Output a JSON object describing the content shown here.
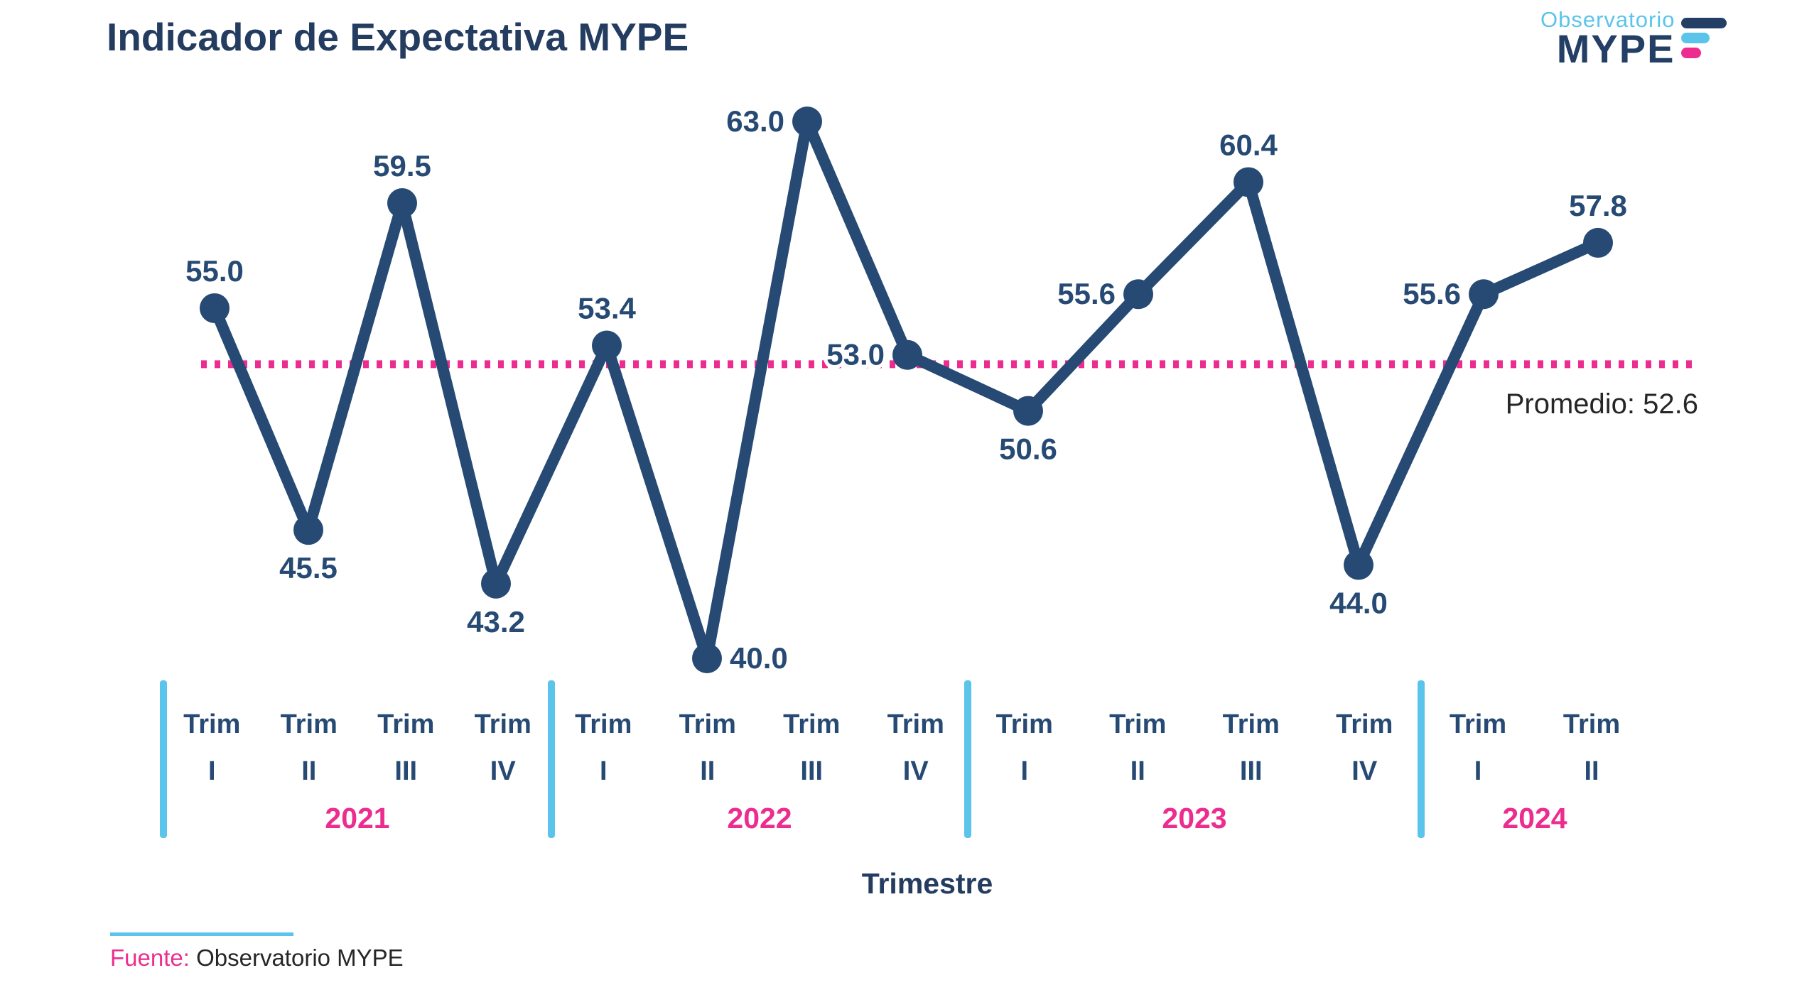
{
  "header": {
    "title": "Indicador de Expectativa MYPE"
  },
  "logo": {
    "brand_top": "Observatorio",
    "brand_name": "MYPE"
  },
  "chart_data": {
    "type": "line",
    "title": "Indicador de Expectativa MYPE",
    "xlabel": "Trimestre",
    "ylabel": "",
    "ylim": [
      40,
      63
    ],
    "grid": false,
    "legend": false,
    "quarter_word": "Trim",
    "categories": [
      "Trim I 2021",
      "Trim II 2021",
      "Trim III 2021",
      "Trim IV 2021",
      "Trim I 2022",
      "Trim II 2022",
      "Trim III 2022",
      "Trim IV 2022",
      "Trim I 2023",
      "Trim II 2023",
      "Trim III 2023",
      "Trim IV 2023",
      "Trim I 2024",
      "Trim II 2024"
    ],
    "years": [
      {
        "label": "2021",
        "quarters": [
          "I",
          "II",
          "III",
          "IV"
        ],
        "values": [
          55.0,
          45.5,
          59.5,
          43.2
        ]
      },
      {
        "label": "2022",
        "quarters": [
          "I",
          "II",
          "III",
          "IV"
        ],
        "values": [
          53.4,
          40.0,
          63.0,
          53.0
        ]
      },
      {
        "label": "2023",
        "quarters": [
          "I",
          "II",
          "III",
          "IV"
        ],
        "values": [
          50.6,
          55.6,
          60.4,
          44.0
        ]
      },
      {
        "label": "2024",
        "quarters": [
          "I",
          "II"
        ],
        "values": [
          55.6,
          57.8
        ]
      }
    ],
    "series": [
      {
        "name": "Indicador de Expectativa MYPE",
        "values": [
          55.0,
          45.5,
          59.5,
          43.2,
          53.4,
          40.0,
          63.0,
          53.0,
          50.6,
          55.6,
          60.4,
          44.0,
          55.6,
          57.8
        ]
      }
    ],
    "average": {
      "label": "Promedio",
      "value": 52.6,
      "display": "Promedio: 52.6"
    },
    "value_label_placements": [
      "above",
      "below",
      "above",
      "below",
      "above",
      "right",
      "left",
      "left",
      "below",
      "left",
      "above",
      "below",
      "left",
      "above"
    ],
    "colors": {
      "line": "#264A73",
      "point": "#264A73",
      "value_text": "#264A73",
      "average_line": "#EC2D8F",
      "year_label": "#EC2D8F",
      "divider": "#5BC4EA",
      "axis_text": "#264A73",
      "average_text": "#262626"
    }
  },
  "footer": {
    "source_label": "Fuente:",
    "source_text": "Observatorio MYPE"
  }
}
